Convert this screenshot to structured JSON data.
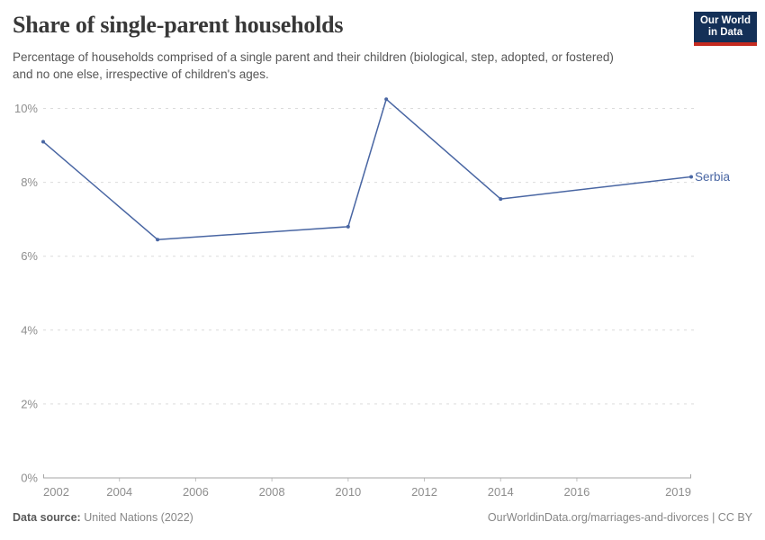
{
  "header": {
    "title": "Share of single-parent households",
    "subtitle": "Percentage of households comprised of a single parent and their children (biological, step, adopted, or fostered) and no one else, irrespective of children's ages.",
    "logo": {
      "line1": "Our World",
      "line2": "in Data"
    }
  },
  "chart_data": {
    "type": "line",
    "title": "Share of single-parent households",
    "xlabel": "",
    "ylabel": "",
    "xlim": [
      2002,
      2019
    ],
    "ylim": [
      0,
      10
    ],
    "grid": "horizontal-dashed",
    "legend": "end-of-line-label",
    "series": [
      {
        "name": "Serbia",
        "points": [
          [
            2002,
            9.1
          ],
          [
            2005,
            6.45
          ],
          [
            2010,
            6.8
          ],
          [
            2011,
            10.25
          ],
          [
            2014,
            7.55
          ],
          [
            2019,
            8.15
          ]
        ]
      }
    ],
    "x_ticks": [
      {
        "year": 2002,
        "label": "2002"
      },
      {
        "year": 2004,
        "label": "2004"
      },
      {
        "year": 2006,
        "label": "2006"
      },
      {
        "year": 2008,
        "label": "2008"
      },
      {
        "year": 2010,
        "label": "2010"
      },
      {
        "year": 2012,
        "label": "2012"
      },
      {
        "year": 2014,
        "label": "2014"
      },
      {
        "year": 2016,
        "label": "2016"
      },
      {
        "year": 2019,
        "label": "2019"
      }
    ],
    "y_ticks": [
      {
        "value": 0,
        "label": "0%"
      },
      {
        "value": 2,
        "label": "2%"
      },
      {
        "value": 4,
        "label": "4%"
      },
      {
        "value": 6,
        "label": "6%"
      },
      {
        "value": 8,
        "label": "8%"
      },
      {
        "value": 10,
        "label": "10%"
      }
    ]
  },
  "footer": {
    "source_label": "Data source:",
    "source_value": "United Nations (2022)",
    "link": "OurWorldinData.org/marriages-and-divorces | CC BY"
  },
  "colors": {
    "title": "#383838",
    "subtitle": "#565656",
    "line": "#4966a3",
    "grid": "#dcdcdc",
    "axis": "#a5a5a5",
    "tick": "#c0c0c0",
    "tick-label": "#8e8e8e",
    "footer-label": "#5a5a5a",
    "footer-muted": "#878787",
    "logo-bg": "#143057",
    "logo-accent": "#c52b20"
  }
}
